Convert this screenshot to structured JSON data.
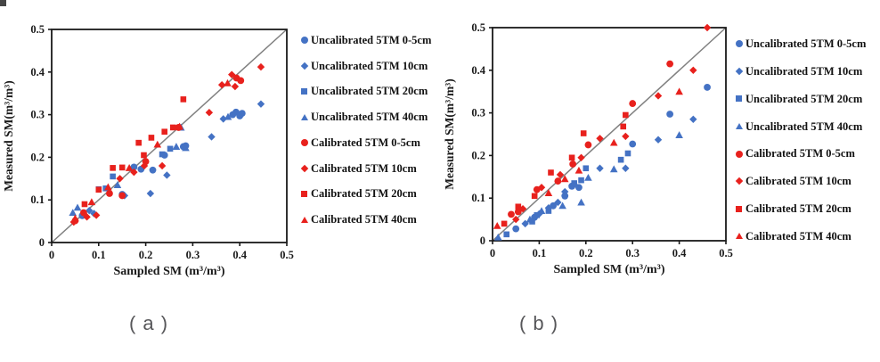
{
  "figure": {
    "background": "#ffffff",
    "captions": {
      "a": "( a )",
      "b": "( b )"
    },
    "palette": {
      "uncalibrated_blue": "#4472c4",
      "calibrated_red": "#e8211d",
      "reference_line_gray": "#808080",
      "axis_black": "#1a1a1a",
      "caption_gray": "#57575a"
    }
  },
  "chart_data": [
    {
      "id": "a",
      "type": "scatter",
      "caption": "( a )",
      "xlabel": "Sampled SM (m³/m³)",
      "ylabel": "Measured SM(m³/m³)",
      "xlim": [
        0,
        0.5
      ],
      "ylim": [
        0,
        0.5
      ],
      "xticks": [
        "0",
        "0.1",
        "0.2",
        "0.3",
        "0.4",
        "0.5"
      ],
      "yticks": [
        "0",
        "0.1",
        "0.2",
        "0.3",
        "0.4",
        "0.5"
      ],
      "grid": false,
      "legend_position": "right-outside",
      "reference_line": {
        "from": [
          0,
          0
        ],
        "to": [
          0.5,
          0.5
        ],
        "color": "#808080"
      },
      "series": [
        {
          "name": "Uncalibrated 5TM 0-5cm",
          "marker": "circle",
          "color": "#4472c4",
          "points": [
            [
              0.065,
              0.063
            ],
            [
              0.15,
              0.113
            ],
            [
              0.175,
              0.177
            ],
            [
              0.19,
              0.172
            ],
            [
              0.215,
              0.17
            ],
            [
              0.24,
              0.205
            ],
            [
              0.28,
              0.225
            ],
            [
              0.285,
              0.227
            ],
            [
              0.385,
              0.3
            ],
            [
              0.392,
              0.306
            ],
            [
              0.4,
              0.297
            ],
            [
              0.405,
              0.303
            ]
          ]
        },
        {
          "name": "Uncalibrated 5TM 10cm",
          "marker": "diamond",
          "color": "#4472c4",
          "points": [
            [
              0.08,
              0.075
            ],
            [
              0.09,
              0.068
            ],
            [
              0.155,
              0.11
            ],
            [
              0.21,
              0.115
            ],
            [
              0.245,
              0.158
            ],
            [
              0.34,
              0.248
            ],
            [
              0.365,
              0.29
            ],
            [
              0.445,
              0.325
            ]
          ]
        },
        {
          "name": "Uncalibrated 5TM 20cm",
          "marker": "square",
          "color": "#4472c4",
          "points": [
            [
              0.1,
              0.125
            ],
            [
              0.115,
              0.127
            ],
            [
              0.13,
              0.155
            ],
            [
              0.235,
              0.207
            ],
            [
              0.252,
              0.22
            ]
          ]
        },
        {
          "name": "Uncalibrated 5TM 40cm",
          "marker": "triangle",
          "color": "#4472c4",
          "points": [
            [
              0.045,
              0.07
            ],
            [
              0.055,
              0.082
            ],
            [
              0.14,
              0.135
            ],
            [
              0.265,
              0.225
            ],
            [
              0.275,
              0.27
            ],
            [
              0.285,
              0.222
            ],
            [
              0.375,
              0.295
            ]
          ]
        },
        {
          "name": "Calibrated 5TM 0-5cm",
          "marker": "circle",
          "color": "#e8211d",
          "points": [
            [
              0.05,
              0.051
            ],
            [
              0.068,
              0.07
            ],
            [
              0.123,
              0.115
            ],
            [
              0.15,
              0.11
            ],
            [
              0.2,
              0.19
            ],
            [
              0.27,
              0.27
            ],
            [
              0.393,
              0.386
            ],
            [
              0.402,
              0.38
            ]
          ]
        },
        {
          "name": "Calibrated 5TM 10cm",
          "marker": "diamond",
          "color": "#e8211d",
          "points": [
            [
              0.047,
              0.048
            ],
            [
              0.075,
              0.06
            ],
            [
              0.095,
              0.064
            ],
            [
              0.145,
              0.15
            ],
            [
              0.175,
              0.165
            ],
            [
              0.197,
              0.18
            ],
            [
              0.235,
              0.18
            ],
            [
              0.335,
              0.305
            ],
            [
              0.362,
              0.37
            ],
            [
              0.383,
              0.394
            ],
            [
              0.39,
              0.366
            ],
            [
              0.445,
              0.412
            ]
          ]
        },
        {
          "name": "Calibrated 5TM 20cm",
          "marker": "square",
          "color": "#e8211d",
          "points": [
            [
              0.07,
              0.09
            ],
            [
              0.1,
              0.124
            ],
            [
              0.13,
              0.175
            ],
            [
              0.15,
              0.176
            ],
            [
              0.185,
              0.234
            ],
            [
              0.196,
              0.205
            ],
            [
              0.212,
              0.246
            ],
            [
              0.24,
              0.26
            ],
            [
              0.258,
              0.27
            ],
            [
              0.28,
              0.336
            ]
          ]
        },
        {
          "name": "Calibrated 5TM 40cm",
          "marker": "triangle",
          "color": "#e8211d",
          "points": [
            [
              0.05,
              0.057
            ],
            [
              0.085,
              0.095
            ],
            [
              0.12,
              0.13
            ],
            [
              0.165,
              0.175
            ],
            [
              0.225,
              0.23
            ],
            [
              0.272,
              0.272
            ],
            [
              0.374,
              0.374
            ]
          ]
        }
      ]
    },
    {
      "id": "b",
      "type": "scatter",
      "caption": "( b )",
      "xlabel": "Sampled SM (m³/m³)",
      "ylabel": "Measured SM(m³/m³)",
      "xlim": [
        0,
        0.5
      ],
      "ylim": [
        0,
        0.5
      ],
      "xticks": [
        "0",
        "0.1",
        "0.2",
        "0.3",
        "0.4",
        "0.5"
      ],
      "yticks": [
        "0",
        "0.1",
        "0.2",
        "0.3",
        "0.4",
        "0.5"
      ],
      "grid": false,
      "legend_position": "right-outside",
      "reference_line": {
        "from": [
          0,
          0
        ],
        "to": [
          0.5,
          0.5
        ],
        "color": "#808080"
      },
      "series": [
        {
          "name": "Uncalibrated 5TM 0-5cm",
          "marker": "circle",
          "color": "#4472c4",
          "points": [
            [
              0.05,
              0.028
            ],
            [
              0.09,
              0.055
            ],
            [
              0.13,
              0.082
            ],
            [
              0.155,
              0.105
            ],
            [
              0.17,
              0.128
            ],
            [
              0.185,
              0.125
            ],
            [
              0.3,
              0.227
            ],
            [
              0.38,
              0.297
            ],
            [
              0.46,
              0.36
            ]
          ]
        },
        {
          "name": "Uncalibrated 5TM 10cm",
          "marker": "diamond",
          "color": "#4472c4",
          "points": [
            [
              0.07,
              0.04
            ],
            [
              0.1,
              0.063
            ],
            [
              0.12,
              0.077
            ],
            [
              0.14,
              0.09
            ],
            [
              0.155,
              0.115
            ],
            [
              0.175,
              0.132
            ],
            [
              0.23,
              0.17
            ],
            [
              0.285,
              0.17
            ],
            [
              0.355,
              0.237
            ],
            [
              0.43,
              0.285
            ]
          ]
        },
        {
          "name": "Uncalibrated 5TM 20cm",
          "marker": "square",
          "color": "#4472c4",
          "points": [
            [
              0.03,
              0.015
            ],
            [
              0.085,
              0.045
            ],
            [
              0.095,
              0.06
            ],
            [
              0.12,
              0.07
            ],
            [
              0.175,
              0.135
            ],
            [
              0.19,
              0.142
            ],
            [
              0.2,
              0.17
            ],
            [
              0.275,
              0.19
            ],
            [
              0.29,
              0.205
            ]
          ]
        },
        {
          "name": "Uncalibrated 5TM 40cm",
          "marker": "triangle",
          "color": "#4472c4",
          "points": [
            [
              0.012,
              0.008
            ],
            [
              0.08,
              0.05
            ],
            [
              0.105,
              0.07
            ],
            [
              0.15,
              0.082
            ],
            [
              0.19,
              0.09
            ],
            [
              0.205,
              0.148
            ],
            [
              0.26,
              0.168
            ],
            [
              0.4,
              0.248
            ]
          ]
        },
        {
          "name": "Calibrated 5TM 0-5cm",
          "marker": "circle",
          "color": "#e8211d",
          "points": [
            [
              0.04,
              0.062
            ],
            [
              0.055,
              0.068
            ],
            [
              0.095,
              0.12
            ],
            [
              0.14,
              0.14
            ],
            [
              0.172,
              0.18
            ],
            [
              0.205,
              0.225
            ],
            [
              0.3,
              0.322
            ],
            [
              0.38,
              0.415
            ]
          ]
        },
        {
          "name": "Calibrated 5TM 10cm",
          "marker": "diamond",
          "color": "#e8211d",
          "points": [
            [
              0.05,
              0.05
            ],
            [
              0.065,
              0.075
            ],
            [
              0.105,
              0.125
            ],
            [
              0.145,
              0.155
            ],
            [
              0.19,
              0.195
            ],
            [
              0.23,
              0.24
            ],
            [
              0.285,
              0.245
            ],
            [
              0.355,
              0.34
            ],
            [
              0.43,
              0.4
            ],
            [
              0.46,
              0.5
            ]
          ]
        },
        {
          "name": "Calibrated 5TM 20cm",
          "marker": "square",
          "color": "#e8211d",
          "points": [
            [
              0.025,
              0.04
            ],
            [
              0.055,
              0.08
            ],
            [
              0.09,
              0.105
            ],
            [
              0.125,
              0.16
            ],
            [
              0.17,
              0.195
            ],
            [
              0.195,
              0.252
            ],
            [
              0.28,
              0.268
            ],
            [
              0.285,
              0.295
            ]
          ]
        },
        {
          "name": "Calibrated 5TM 40cm",
          "marker": "triangle",
          "color": "#e8211d",
          "points": [
            [
              0.01,
              0.035
            ],
            [
              0.12,
              0.112
            ],
            [
              0.155,
              0.145
            ],
            [
              0.185,
              0.165
            ],
            [
              0.26,
              0.23
            ],
            [
              0.4,
              0.35
            ]
          ]
        }
      ]
    }
  ]
}
